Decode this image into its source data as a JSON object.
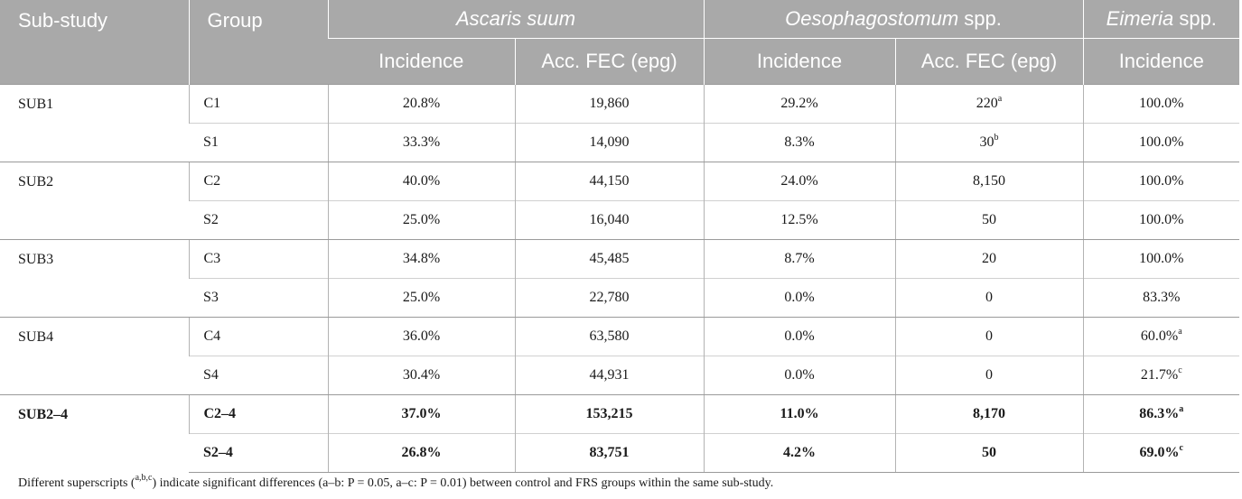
{
  "header": {
    "substudy": "Sub-study",
    "group": "Group",
    "ascaris": "Ascaris suum",
    "oeso_italic": "Oesophagostomum",
    "oeso_suffix": " spp.",
    "eimeria_italic": "Eimeria",
    "eimeria_suffix": " spp.",
    "incidence": "Incidence",
    "acc_fec": "Acc. FEC (epg)"
  },
  "rows": [
    {
      "substudy": "SUB1",
      "group": "C1",
      "asc_inc": "20.8%",
      "asc_fec": "19,860",
      "oes_inc": "29.2%",
      "oes_fec": "220",
      "oes_fec_sup": "a",
      "eim_inc": "100.0%",
      "eim_sup": ""
    },
    {
      "substudy": "",
      "group": "S1",
      "asc_inc": "33.3%",
      "asc_fec": "14,090",
      "oes_inc": "8.3%",
      "oes_fec": "30",
      "oes_fec_sup": "b",
      "eim_inc": "100.0%",
      "eim_sup": ""
    },
    {
      "substudy": "SUB2",
      "group": "C2",
      "asc_inc": "40.0%",
      "asc_fec": "44,150",
      "oes_inc": "24.0%",
      "oes_fec": "8,150",
      "oes_fec_sup": "",
      "eim_inc": "100.0%",
      "eim_sup": ""
    },
    {
      "substudy": "",
      "group": "S2",
      "asc_inc": "25.0%",
      "asc_fec": "16,040",
      "oes_inc": "12.5%",
      "oes_fec": "50",
      "oes_fec_sup": "",
      "eim_inc": "100.0%",
      "eim_sup": ""
    },
    {
      "substudy": "SUB3",
      "group": "C3",
      "asc_inc": "34.8%",
      "asc_fec": "45,485",
      "oes_inc": "8.7%",
      "oes_fec": "20",
      "oes_fec_sup": "",
      "eim_inc": "100.0%",
      "eim_sup": ""
    },
    {
      "substudy": "",
      "group": "S3",
      "asc_inc": "25.0%",
      "asc_fec": "22,780",
      "oes_inc": "0.0%",
      "oes_fec": "0",
      "oes_fec_sup": "",
      "eim_inc": "83.3%",
      "eim_sup": ""
    },
    {
      "substudy": "SUB4",
      "group": "C4",
      "asc_inc": "36.0%",
      "asc_fec": "63,580",
      "oes_inc": "0.0%",
      "oes_fec": "0",
      "oes_fec_sup": "",
      "eim_inc": "60.0%",
      "eim_sup": "a"
    },
    {
      "substudy": "",
      "group": "S4",
      "asc_inc": "30.4%",
      "asc_fec": "44,931",
      "oes_inc": "0.0%",
      "oes_fec": "0",
      "oes_fec_sup": "",
      "eim_inc": "21.7%",
      "eim_sup": "c"
    },
    {
      "substudy": "SUB2–4",
      "group": "C2–4",
      "asc_inc": "37.0%",
      "asc_fec": "153,215",
      "oes_inc": "11.0%",
      "oes_fec": "8,170",
      "oes_fec_sup": "",
      "eim_inc": "86.3%",
      "eim_sup": "a"
    },
    {
      "substudy": "",
      "group": "S2–4",
      "asc_inc": "26.8%",
      "asc_fec": "83,751",
      "oes_inc": "4.2%",
      "oes_fec": "50",
      "oes_fec_sup": "",
      "eim_inc": "69.0%",
      "eim_sup": "c"
    }
  ],
  "footnote": {
    "before": "Different superscripts (",
    "sup": "a,b,c",
    "after": ") indicate significant differences (a–b: P = 0.05, a–c: P = 0.01) between control and FRS groups within the same sub-study."
  }
}
